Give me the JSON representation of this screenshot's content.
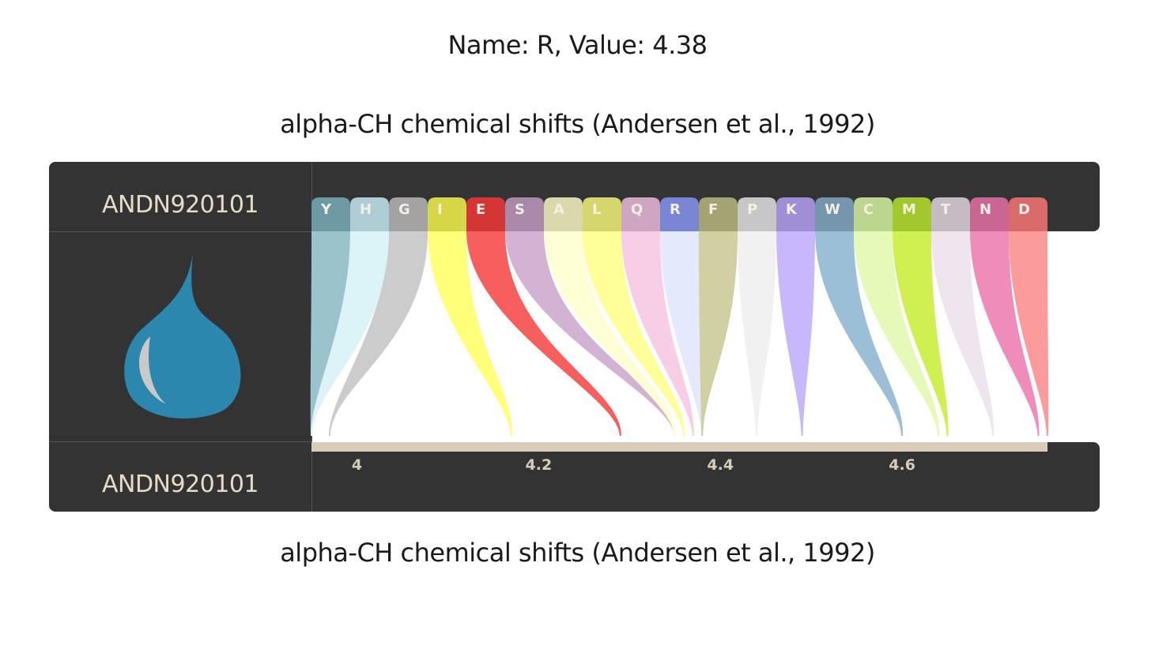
{
  "hover_info": {
    "name_prefix": "Name: ",
    "name": "R",
    "value_prefix": ", Value: ",
    "value": "4.38"
  },
  "title_top": "alpha-CH chemical shifts (Andersen et al., 1992)",
  "title_bottom": "alpha-CH chemical shifts (Andersen et al., 1992)",
  "index_code_top": "ANDN920101",
  "index_code_bottom": "ANDN920101",
  "icon": "water-drop-icon",
  "colors": {
    "panel": "#333333",
    "label": "#e6dcc6",
    "drop": "#2b87ad",
    "axis_bar": "#d8cdbb",
    "tick_text": "#d6ccba"
  },
  "chart_data": {
    "type": "bar",
    "title": "alpha-CH chemical shifts (Andersen et al., 1992)",
    "xlim": [
      3.95,
      4.76
    ],
    "xticks": [
      4,
      4.2,
      4.4,
      4.6
    ],
    "categories": [
      "Y",
      "H",
      "G",
      "I",
      "E",
      "S",
      "A",
      "L",
      "Q",
      "R",
      "F",
      "P",
      "K",
      "W",
      "C",
      "M",
      "T",
      "N",
      "D"
    ],
    "values": [
      3.95,
      3.95,
      3.97,
      4.17,
      4.29,
      4.35,
      4.35,
      4.36,
      4.37,
      4.38,
      4.38,
      4.44,
      4.49,
      4.6,
      4.64,
      4.65,
      4.7,
      4.75,
      4.76
    ],
    "colors": {
      "tab": [
        "#6e9aa3",
        "#aecdd4",
        "#a3a3a3",
        "#d6d648",
        "#d43535",
        "#a88aa8",
        "#d9d9ad",
        "#d6d66e",
        "#cfa6c2",
        "#7a85d6",
        "#a3a373",
        "#c7c7c7",
        "#a08fd6",
        "#7596ad",
        "#bdd68f",
        "#a3c72e",
        "#c4bcc2",
        "#c96691",
        "#d96b6b"
      ],
      "ribbon": [
        "#9bc3cc",
        "#dcf4f8",
        "#cccccc",
        "#ffff7a",
        "#f75e5e",
        "#d3b3d3",
        "#ffffd6",
        "#ffff99",
        "#f8cde6",
        "#e4e9fc",
        "#d0d0a2",
        "#f1f1f1",
        "#c8b8fb",
        "#9bbfd6",
        "#e5f9b8",
        "#cff050",
        "#eee5ee",
        "#ef8cb9",
        "#fb9b9b"
      ]
    }
  }
}
